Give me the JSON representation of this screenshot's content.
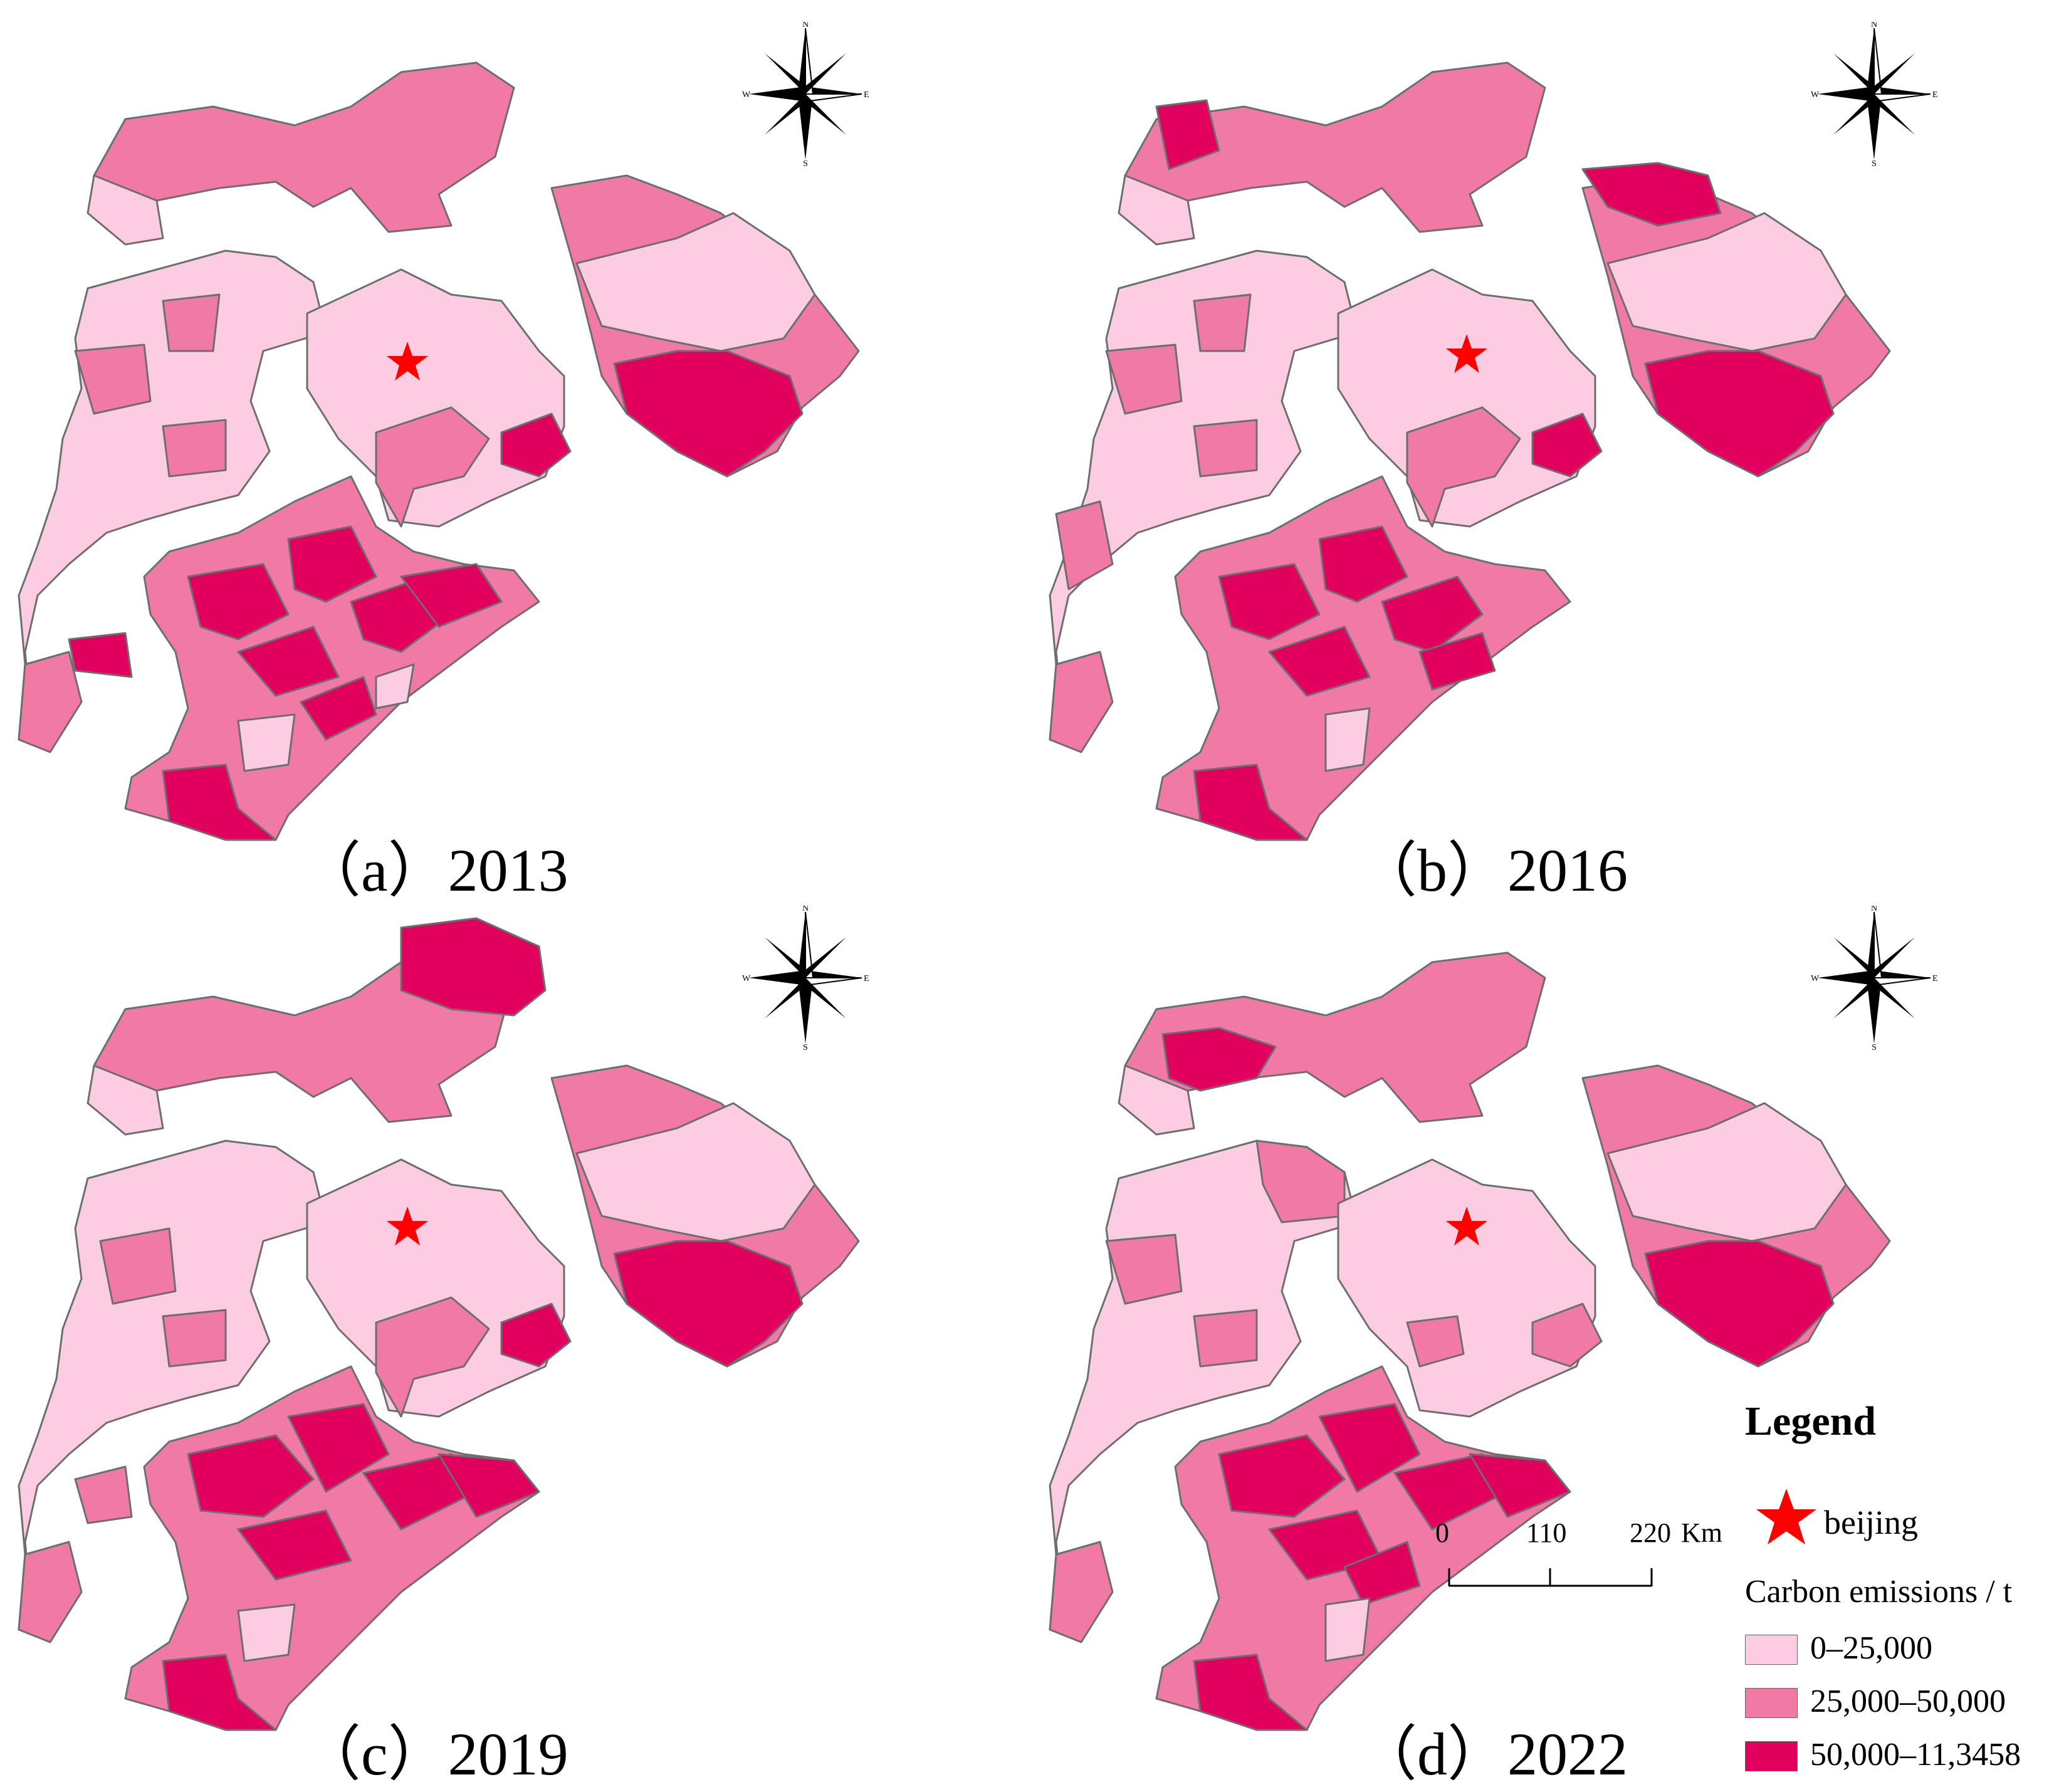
{
  "panels": [
    {
      "id": "a",
      "caption": "（a）2013"
    },
    {
      "id": "b",
      "caption": "（b）2016"
    },
    {
      "id": "c",
      "caption": "（c）2019"
    },
    {
      "id": "d",
      "caption": "（d）2022"
    }
  ],
  "compass": {
    "n": "N",
    "s": "S",
    "w": "W",
    "e": "E"
  },
  "legend": {
    "title": "Legend",
    "marker_label": "beijing",
    "subtitle": "Carbon emissions / t",
    "classes": [
      {
        "label": "0–25,000",
        "color": "#fccde2"
      },
      {
        "label": "25,000–50,000",
        "color": "#f07aa5"
      },
      {
        "label": "50,000–11,3458",
        "color": "#e2005f"
      }
    ]
  },
  "scale": {
    "ticks": [
      "0",
      "110",
      "220"
    ],
    "unit": "Km"
  },
  "colors": {
    "outline": "#6e6e6e",
    "star": "#ff0000"
  }
}
